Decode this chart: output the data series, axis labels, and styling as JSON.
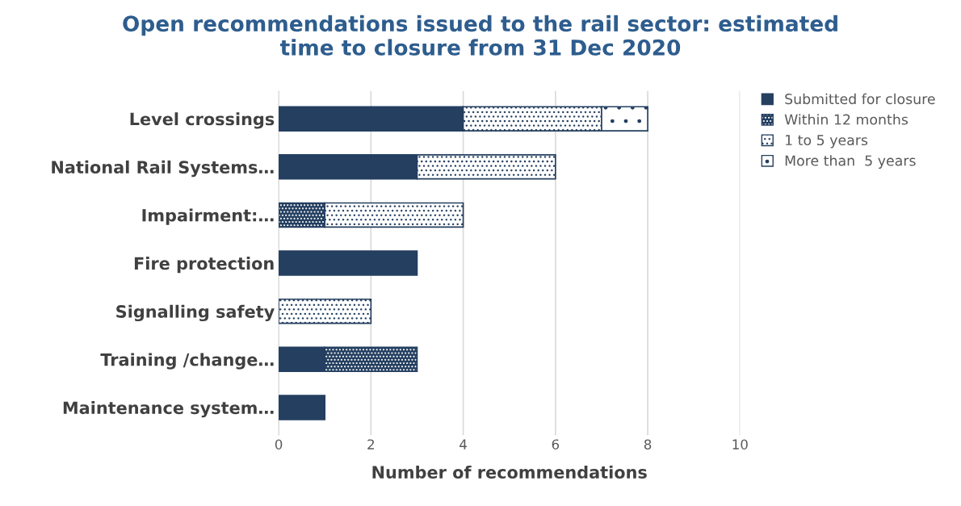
{
  "chart_data": {
    "type": "bar",
    "orientation": "horizontal",
    "stacked": true,
    "title": "Open recommendations issued to the rail sector: estimated\ntime to closure from 31 Dec 2020",
    "xlabel": "Number of recommendations",
    "categories": [
      "Level crossings",
      "National Rail Systems…",
      "Impairment:…",
      "Fire protection",
      "Signalling safety",
      "Training /change…",
      "Maintenance system…"
    ],
    "series": [
      {
        "name": "Submitted for closure",
        "color": "#243f60",
        "values": [
          4,
          3,
          0,
          3,
          0,
          1,
          1
        ]
      },
      {
        "name": "Within 12 months",
        "color": "#243f60",
        "values": [
          0,
          0,
          1,
          0,
          0,
          2,
          0
        ]
      },
      {
        "name": "1 to 5 years",
        "color": "#243f60",
        "values": [
          3,
          3,
          3,
          0,
          2,
          0,
          0
        ]
      },
      {
        "name": "More than  5 years",
        "color": "#243f60",
        "values": [
          1,
          0,
          0,
          0,
          0,
          0,
          0
        ]
      }
    ],
    "xlim": [
      0,
      10
    ],
    "xticks": [
      0,
      2,
      4,
      6,
      8,
      10
    ],
    "grid": "x",
    "legend": "top right"
  }
}
